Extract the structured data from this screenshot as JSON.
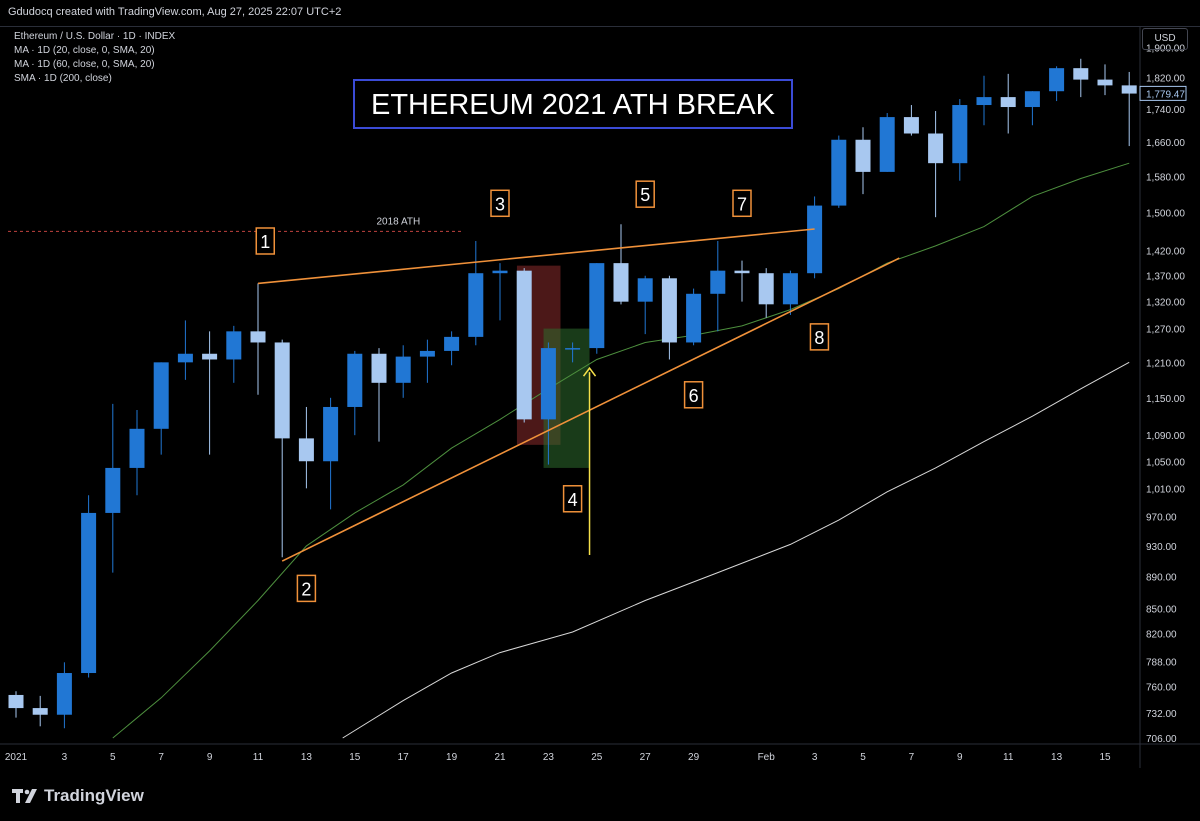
{
  "header": {
    "attribution": "Gdudocq created with TradingView.com, Aug 27, 2025 22:07 UTC+2"
  },
  "legend": {
    "lines": [
      "Ethereum / U.S. Dollar · 1D · INDEX",
      "MA · 1D (20, close, 0, SMA, 20)",
      "MA · 1D (60, close, 0, SMA, 20)",
      "SMA · 1D (200, close)"
    ]
  },
  "currency_label": "USD",
  "footer": {
    "brand": "TradingView"
  },
  "colors": {
    "background": "#000000",
    "bull_candle": "#2177d4",
    "bear_candle": "#a8c8f0",
    "ma20": "#4d8f3e",
    "ma200": "#d8d8d8",
    "trendline": "#f0913a",
    "title_border": "#3b4bd6",
    "arrow": "#f5e04a",
    "red_box": "#8b2b2b",
    "green_box": "#2d6b2d",
    "price_tag": "#a8c8f0"
  },
  "chart_data": {
    "type": "candlestick",
    "title": "ETHEREUM 2021 ATH BREAK",
    "y_axis": {
      "scale": "log",
      "ylim": [
        700,
        1960
      ],
      "tick_labels": [
        "1,900.00",
        "1,820.00",
        "1,740.00",
        "1,660.00",
        "1,580.00",
        "1,500.00",
        "1,420.00",
        "1,370.00",
        "1,320.00",
        "1,270.00",
        "1,210.00",
        "1,150.00",
        "1,090.00",
        "1,050.00",
        "1,010.00",
        "970.00",
        "930.00",
        "890.00",
        "850.00",
        "820.00",
        "788.00",
        "760.00",
        "732.00",
        "706.00"
      ],
      "tick_values": [
        1900,
        1820,
        1740,
        1660,
        1580,
        1500,
        1420,
        1370,
        1320,
        1270,
        1210,
        1150,
        1090,
        1050,
        1010,
        970,
        930,
        890,
        850,
        820,
        788,
        760,
        732,
        706
      ]
    },
    "x_axis": {
      "tick_labels": [
        "2021",
        "3",
        "5",
        "7",
        "9",
        "11",
        "13",
        "15",
        "17",
        "19",
        "21",
        "23",
        "25",
        "27",
        "29",
        "Feb",
        "3",
        "5",
        "7",
        "9",
        "11",
        "13",
        "15"
      ],
      "tick_index": [
        0,
        2,
        4,
        6,
        8,
        10,
        12,
        14,
        16,
        18,
        20,
        22,
        24,
        26,
        28,
        31,
        33,
        35,
        37,
        39,
        41,
        43,
        45
      ]
    },
    "last_price": "1,779.47",
    "last_price_value": 1779.47,
    "candles": [
      {
        "date": "2020-12-31",
        "o": 751,
        "h": 755,
        "l": 727,
        "c": 737
      },
      {
        "date": "2021-01-01",
        "o": 737,
        "h": 750,
        "l": 718,
        "c": 730
      },
      {
        "date": "2021-01-02",
        "o": 730,
        "h": 787,
        "l": 716,
        "c": 775
      },
      {
        "date": "2021-01-03",
        "o": 775,
        "h": 1000,
        "l": 770,
        "c": 975
      },
      {
        "date": "2021-01-04",
        "o": 975,
        "h": 1140,
        "l": 895,
        "c": 1040
      },
      {
        "date": "2021-01-05",
        "o": 1040,
        "h": 1130,
        "l": 1000,
        "c": 1100
      },
      {
        "date": "2021-01-06",
        "o": 1100,
        "h": 1210,
        "l": 1060,
        "c": 1210
      },
      {
        "date": "2021-01-07",
        "o": 1210,
        "h": 1285,
        "l": 1180,
        "c": 1225
      },
      {
        "date": "2021-01-08",
        "o": 1225,
        "h": 1265,
        "l": 1060,
        "c": 1215
      },
      {
        "date": "2021-01-09",
        "o": 1215,
        "h": 1275,
        "l": 1175,
        "c": 1265
      },
      {
        "date": "2021-01-10",
        "o": 1265,
        "h": 1355,
        "l": 1155,
        "c": 1245
      },
      {
        "date": "2021-01-11",
        "o": 1245,
        "h": 1250,
        "l": 915,
        "c": 1085
      },
      {
        "date": "2021-01-12",
        "o": 1085,
        "h": 1135,
        "l": 1010,
        "c": 1050
      },
      {
        "date": "2021-01-13",
        "o": 1050,
        "h": 1150,
        "l": 980,
        "c": 1135
      },
      {
        "date": "2021-01-14",
        "o": 1135,
        "h": 1230,
        "l": 1090,
        "c": 1225
      },
      {
        "date": "2021-01-15",
        "o": 1225,
        "h": 1235,
        "l": 1080,
        "c": 1175
      },
      {
        "date": "2021-01-16",
        "o": 1175,
        "h": 1240,
        "l": 1150,
        "c": 1220
      },
      {
        "date": "2021-01-17",
        "o": 1220,
        "h": 1250,
        "l": 1175,
        "c": 1230
      },
      {
        "date": "2021-01-18",
        "o": 1230,
        "h": 1265,
        "l": 1205,
        "c": 1255
      },
      {
        "date": "2021-01-19",
        "o": 1255,
        "h": 1440,
        "l": 1240,
        "c": 1375
      },
      {
        "date": "2021-01-20",
        "o": 1375,
        "h": 1395,
        "l": 1285,
        "c": 1380
      },
      {
        "date": "2021-01-21",
        "o": 1380,
        "h": 1385,
        "l": 1110,
        "c": 1115
      },
      {
        "date": "2021-01-22",
        "o": 1115,
        "h": 1245,
        "l": 1045,
        "c": 1235
      },
      {
        "date": "2021-01-23",
        "o": 1235,
        "h": 1245,
        "l": 1210,
        "c": 1235
      },
      {
        "date": "2021-01-24",
        "o": 1235,
        "h": 1395,
        "l": 1225,
        "c": 1395
      },
      {
        "date": "2021-01-25",
        "o": 1395,
        "h": 1475,
        "l": 1315,
        "c": 1320
      },
      {
        "date": "2021-01-26",
        "o": 1320,
        "h": 1370,
        "l": 1260,
        "c": 1365
      },
      {
        "date": "2021-01-27",
        "o": 1365,
        "h": 1370,
        "l": 1215,
        "c": 1245
      },
      {
        "date": "2021-01-28",
        "o": 1245,
        "h": 1345,
        "l": 1240,
        "c": 1335
      },
      {
        "date": "2021-01-29",
        "o": 1335,
        "h": 1440,
        "l": 1265,
        "c": 1380
      },
      {
        "date": "2021-01-30",
        "o": 1380,
        "h": 1400,
        "l": 1320,
        "c": 1375
      },
      {
        "date": "2021-01-31",
        "o": 1375,
        "h": 1385,
        "l": 1290,
        "c": 1315
      },
      {
        "date": "2021-02-01",
        "o": 1315,
        "h": 1380,
        "l": 1295,
        "c": 1375
      },
      {
        "date": "2021-02-02",
        "o": 1375,
        "h": 1535,
        "l": 1365,
        "c": 1515
      },
      {
        "date": "2021-02-03",
        "o": 1515,
        "h": 1675,
        "l": 1510,
        "c": 1665
      },
      {
        "date": "2021-02-04",
        "o": 1665,
        "h": 1695,
        "l": 1540,
        "c": 1590
      },
      {
        "date": "2021-02-05",
        "o": 1590,
        "h": 1730,
        "l": 1590,
        "c": 1720
      },
      {
        "date": "2021-02-06",
        "o": 1720,
        "h": 1750,
        "l": 1675,
        "c": 1680
      },
      {
        "date": "2021-02-07",
        "o": 1680,
        "h": 1735,
        "l": 1490,
        "c": 1610
      },
      {
        "date": "2021-02-08",
        "o": 1610,
        "h": 1765,
        "l": 1570,
        "c": 1750
      },
      {
        "date": "2021-02-09",
        "o": 1750,
        "h": 1825,
        "l": 1700,
        "c": 1770
      },
      {
        "date": "2021-02-10",
        "o": 1770,
        "h": 1830,
        "l": 1680,
        "c": 1745
      },
      {
        "date": "2021-02-11",
        "o": 1745,
        "h": 1785,
        "l": 1700,
        "c": 1785
      },
      {
        "date": "2021-02-12",
        "o": 1785,
        "h": 1850,
        "l": 1760,
        "c": 1845
      },
      {
        "date": "2021-02-13",
        "o": 1845,
        "h": 1870,
        "l": 1770,
        "c": 1815
      },
      {
        "date": "2021-02-14",
        "o": 1815,
        "h": 1855,
        "l": 1775,
        "c": 1800
      },
      {
        "date": "2021-02-15",
        "o": 1800,
        "h": 1835,
        "l": 1650,
        "c": 1779
      }
    ],
    "ma20": [
      {
        "i": 4,
        "v": 706
      },
      {
        "i": 6,
        "v": 748
      },
      {
        "i": 8,
        "v": 800
      },
      {
        "i": 10,
        "v": 860
      },
      {
        "i": 12,
        "v": 930
      },
      {
        "i": 14,
        "v": 975
      },
      {
        "i": 16,
        "v": 1015
      },
      {
        "i": 18,
        "v": 1070
      },
      {
        "i": 20,
        "v": 1115
      },
      {
        "i": 22,
        "v": 1165
      },
      {
        "i": 24,
        "v": 1215
      },
      {
        "i": 26,
        "v": 1245
      },
      {
        "i": 28,
        "v": 1258
      },
      {
        "i": 30,
        "v": 1275
      },
      {
        "i": 32,
        "v": 1305
      },
      {
        "i": 34,
        "v": 1345
      },
      {
        "i": 36,
        "v": 1395
      },
      {
        "i": 38,
        "v": 1430
      },
      {
        "i": 40,
        "v": 1470
      },
      {
        "i": 42,
        "v": 1535
      },
      {
        "i": 44,
        "v": 1575
      },
      {
        "i": 46,
        "v": 1610
      }
    ],
    "sma200": [
      {
        "i": 13.5,
        "v": 706
      },
      {
        "i": 16,
        "v": 745
      },
      {
        "i": 18,
        "v": 775
      },
      {
        "i": 20,
        "v": 798
      },
      {
        "i": 23,
        "v": 822
      },
      {
        "i": 26,
        "v": 860
      },
      {
        "i": 29,
        "v": 895
      },
      {
        "i": 32,
        "v": 932
      },
      {
        "i": 34,
        "v": 965
      },
      {
        "i": 36,
        "v": 1005
      },
      {
        "i": 38,
        "v": 1040
      },
      {
        "i": 40,
        "v": 1080
      },
      {
        "i": 42,
        "v": 1120
      },
      {
        "i": 44,
        "v": 1165
      },
      {
        "i": 46,
        "v": 1210
      }
    ],
    "trendlines": [
      {
        "name": "upper",
        "from": {
          "i": 10,
          "v": 1355
        },
        "to": {
          "i": 33,
          "v": 1465
        }
      },
      {
        "name": "lower",
        "from": {
          "i": 11,
          "v": 910
        },
        "to": {
          "i": 36.5,
          "v": 1405
        }
      }
    ],
    "ath_line": {
      "label": "2018 ATH",
      "value": 1460,
      "from_i": 0,
      "to_i": 18.5
    },
    "annotations": [
      {
        "label": "1",
        "i": 10.3,
        "v": 1440
      },
      {
        "label": "2",
        "i": 12,
        "v": 875
      },
      {
        "label": "3",
        "i": 20,
        "v": 1520
      },
      {
        "label": "4",
        "i": 23,
        "v": 995
      },
      {
        "label": "5",
        "i": 26,
        "v": 1540
      },
      {
        "label": "6",
        "i": 28,
        "v": 1155
      },
      {
        "label": "7",
        "i": 30,
        "v": 1520
      },
      {
        "label": "8",
        "i": 33.2,
        "v": 1255
      }
    ],
    "highlight_boxes": [
      {
        "color": "red",
        "i_from": 20.7,
        "i_to": 22.5,
        "v_low": 1075,
        "v_high": 1390
      },
      {
        "color": "green",
        "i_from": 21.8,
        "i_to": 23.7,
        "v_low": 1040,
        "v_high": 1270
      }
    ],
    "arrow": {
      "i": 23.7,
      "v_from": 918,
      "v_to": 1200
    }
  }
}
